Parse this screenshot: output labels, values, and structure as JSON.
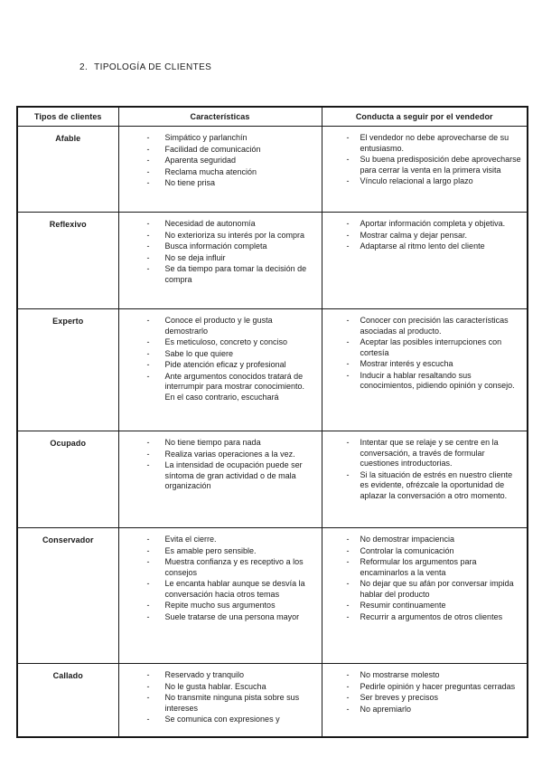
{
  "document": {
    "heading_number": "2.",
    "heading_text": "TIPOLOGÍA DE CLIENTES"
  },
  "colors": {
    "text": "#1b1b1b",
    "border": "#181818",
    "background": "#ffffff"
  },
  "table": {
    "headers": [
      "Tipos de clientes",
      "Características",
      "Conducta a seguir por el vendedor"
    ],
    "rows": [
      {
        "tipo": "Afable",
        "caracteristicas": [
          "Simpático y parlanchín",
          "Facilidad de comunicación",
          "Aparenta seguridad",
          "Reclama mucha atención",
          "No tiene prisa"
        ],
        "conducta": [
          "El vendedor no debe aprovecharse de su entusiasmo.",
          "Su buena predisposición debe aprovecharse para cerrar la venta en la primera visita",
          "Vínculo relacional a largo plazo"
        ]
      },
      {
        "tipo": "Reflexivo",
        "caracteristicas": [
          "Necesidad de autonomía",
          "No exterioriza su interés por la compra",
          "Busca información completa",
          "No se deja influir",
          "Se da tiempo para tomar la decisión de compra"
        ],
        "conducta": [
          "Aportar información completa y objetiva.",
          "Mostrar calma y dejar pensar.",
          "Adaptarse al ritmo lento del cliente"
        ]
      },
      {
        "tipo": "Experto",
        "caracteristicas": [
          "Conoce el producto y le gusta demostrarlo",
          "Es meticuloso, concreto y conciso",
          "Sabe lo que quiere",
          "Pide atención eficaz y profesional",
          "Ante argumentos conocidos tratará de interrumpir para mostrar conocimiento. En el caso contrario, escuchará"
        ],
        "conducta": [
          "Conocer con precisión las características asociadas al producto.",
          "Aceptar las posibles interrupciones con cortesía",
          "Mostrar interés y escucha",
          "Inducir a hablar resaltando sus conocimientos, pidiendo opinión y consejo."
        ]
      },
      {
        "tipo": "Ocupado",
        "caracteristicas": [
          "No tiene tiempo para nada",
          "Realiza varias operaciones a la vez.",
          "La intensidad de ocupación puede ser síntoma de gran actividad o de mala organización"
        ],
        "conducta": [
          "Intentar que se relaje y se centre en la conversación, a través de formular cuestiones introductorias.",
          "Si la situación de estrés en nuestro cliente es evidente, ofrézcale la oportunidad de aplazar la conversación a otro momento."
        ]
      },
      {
        "tipo": "Conservador",
        "caracteristicas": [
          "Evita el cierre.",
          "Es amable pero sensible.",
          "Muestra confianza y es receptivo a los consejos",
          "Le encanta hablar aunque se desvía la conversación hacia otros temas",
          "Repite mucho sus argumentos",
          "Suele tratarse de una persona mayor"
        ],
        "conducta": [
          "No demostrar impaciencia",
          "Controlar la comunicación",
          "Reformular los argumentos para encaminarlos a la venta",
          "No dejar que su afán por conversar impida hablar del producto",
          "Resumir continuamente",
          "Recurrir a argumentos de otros clientes"
        ]
      },
      {
        "tipo": "Callado",
        "caracteristicas": [
          "Reservado y tranquilo",
          "No le gusta hablar. Escucha",
          "No transmite ninguna pista sobre sus intereses",
          "Se comunica con expresiones y"
        ],
        "conducta": [
          "No mostrarse molesto",
          "Pedirle opinión y hacer preguntas cerradas",
          "Ser breves y precisos",
          "No apremiarlo"
        ]
      }
    ]
  }
}
